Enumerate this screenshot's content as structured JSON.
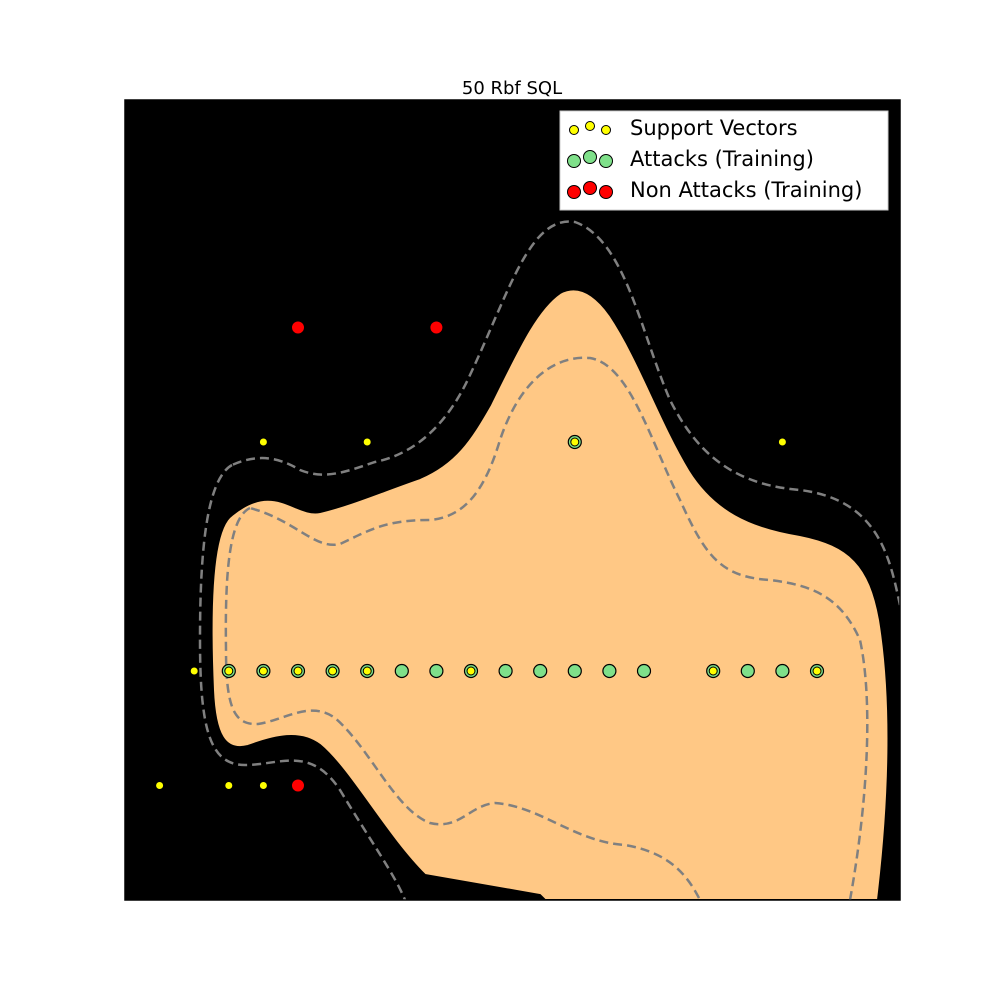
{
  "chart_data": {
    "type": "scatter",
    "title": "50 Rbf SQL",
    "xlabel": "",
    "ylabel": "",
    "axes_ticks": "none",
    "colors": {
      "background_region": "#000000",
      "decision_region": "#ffc885",
      "margin_line": "#808080",
      "decision_boundary": "#000000",
      "support_vector": "#ffff00",
      "attack": "#7fe08a",
      "non_attack": "#ff0000",
      "marker_edge": "#000000"
    },
    "legend": {
      "placement": "top-right",
      "entries": [
        {
          "label": "Support Vectors",
          "color": "#ffff00"
        },
        {
          "label": "Attacks (Training)",
          "color": "#7fe08a"
        },
        {
          "label": "Non Attacks (Training)",
          "color": "#ff0000"
        }
      ]
    },
    "series": [
      {
        "name": "Attacks (Training)",
        "points": [
          [
            3,
            0
          ],
          [
            4,
            0
          ],
          [
            5,
            0
          ],
          [
            6,
            0
          ],
          [
            7,
            0
          ],
          [
            8,
            0
          ],
          [
            9,
            0
          ],
          [
            10,
            0
          ],
          [
            11,
            0
          ],
          [
            12,
            0
          ],
          [
            13,
            0
          ],
          [
            14,
            0
          ],
          [
            15,
            0
          ],
          [
            17,
            0
          ],
          [
            18,
            0
          ],
          [
            19,
            0
          ],
          [
            20,
            0
          ],
          [
            13,
            2
          ]
        ]
      },
      {
        "name": "Non Attacks (Training)",
        "points": [
          [
            5,
            3
          ],
          [
            9,
            3
          ],
          [
            5,
            -1
          ]
        ]
      },
      {
        "name": "Support Vectors",
        "points": [
          [
            3,
            0
          ],
          [
            4,
            0
          ],
          [
            5,
            0
          ],
          [
            6,
            0
          ],
          [
            7,
            0
          ],
          [
            10,
            0
          ],
          [
            17,
            0
          ],
          [
            20,
            0
          ],
          [
            13,
            2
          ],
          [
            2,
            0
          ],
          [
            4,
            2
          ],
          [
            7,
            2
          ],
          [
            19,
            2
          ],
          [
            1,
            -1
          ],
          [
            3,
            -1
          ],
          [
            4,
            -1
          ]
        ]
      }
    ]
  }
}
